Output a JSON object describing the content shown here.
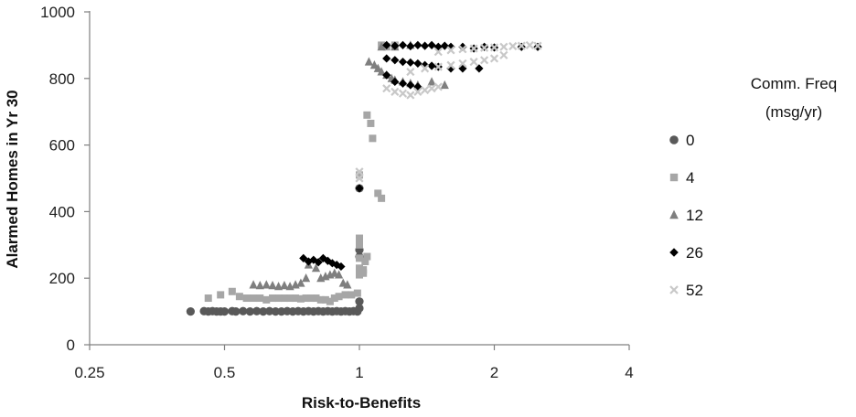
{
  "chart_data": {
    "type": "scatter",
    "title": "",
    "xlabel": "Risk-to-Benefits",
    "ylabel": "Alarmed Homes in Yr 30",
    "xscale": "log2",
    "xlim": [
      0.25,
      4
    ],
    "ylim": [
      0,
      1000
    ],
    "xticks": [
      "0.25",
      "0.5",
      "1",
      "2",
      "4"
    ],
    "yticks": [
      "0",
      "200",
      "400",
      "600",
      "800",
      "1000"
    ],
    "grid": false,
    "legend_title": "Comm. Freq (msg/yr)",
    "legend_title_lines": [
      "Comm. Freq",
      "(msg/yr)"
    ],
    "legend_position": "right",
    "series": [
      {
        "name": "0",
        "marker": "circle",
        "color": "#595959",
        "points": [
          [
            0.42,
            100
          ],
          [
            0.45,
            101
          ],
          [
            0.46,
            100
          ],
          [
            0.47,
            101
          ],
          [
            0.48,
            100
          ],
          [
            0.49,
            100
          ],
          [
            0.5,
            100
          ],
          [
            0.52,
            101
          ],
          [
            0.53,
            100
          ],
          [
            0.55,
            101
          ],
          [
            0.57,
            100
          ],
          [
            0.59,
            101
          ],
          [
            0.61,
            100
          ],
          [
            0.63,
            101
          ],
          [
            0.65,
            100
          ],
          [
            0.67,
            100
          ],
          [
            0.69,
            101
          ],
          [
            0.71,
            100
          ],
          [
            0.73,
            101
          ],
          [
            0.75,
            100
          ],
          [
            0.77,
            101
          ],
          [
            0.79,
            100
          ],
          [
            0.81,
            101
          ],
          [
            0.83,
            100
          ],
          [
            0.85,
            101
          ],
          [
            0.87,
            100
          ],
          [
            0.89,
            101
          ],
          [
            0.91,
            100
          ],
          [
            0.93,
            101
          ],
          [
            0.95,
            100
          ],
          [
            0.97,
            101
          ],
          [
            0.99,
            100
          ],
          [
            1.0,
            110
          ],
          [
            1.0,
            130
          ],
          [
            1.0,
            265
          ],
          [
            1.0,
            285
          ],
          [
            1.0,
            470
          ]
        ]
      },
      {
        "name": "4",
        "marker": "square",
        "color": "#a6a6a6",
        "points": [
          [
            0.46,
            140
          ],
          [
            0.49,
            150
          ],
          [
            0.52,
            160
          ],
          [
            0.54,
            145
          ],
          [
            0.56,
            140
          ],
          [
            0.58,
            140
          ],
          [
            0.6,
            140
          ],
          [
            0.62,
            135
          ],
          [
            0.64,
            140
          ],
          [
            0.66,
            140
          ],
          [
            0.68,
            140
          ],
          [
            0.7,
            140
          ],
          [
            0.72,
            140
          ],
          [
            0.74,
            138
          ],
          [
            0.76,
            140
          ],
          [
            0.78,
            140
          ],
          [
            0.8,
            140
          ],
          [
            0.82,
            135
          ],
          [
            0.84,
            135
          ],
          [
            0.86,
            130
          ],
          [
            0.88,
            140
          ],
          [
            0.9,
            145
          ],
          [
            0.93,
            150
          ],
          [
            0.96,
            150
          ],
          [
            0.99,
            155
          ],
          [
            1.0,
            210
          ],
          [
            1.0,
            230
          ],
          [
            1.0,
            260
          ],
          [
            1.0,
            300
          ],
          [
            1.0,
            320
          ],
          [
            1.0,
            510
          ],
          [
            1.02,
            215
          ],
          [
            1.02,
            225
          ],
          [
            1.03,
            250
          ],
          [
            1.04,
            265
          ],
          [
            1.04,
            690
          ],
          [
            1.06,
            665
          ],
          [
            1.07,
            620
          ],
          [
            1.1,
            455
          ],
          [
            1.12,
            440
          ],
          [
            1.12,
            900
          ],
          [
            1.15,
            895
          ],
          [
            1.2,
            900
          ]
        ]
      },
      {
        "name": "12",
        "marker": "triangle",
        "color": "#7f7f7f",
        "points": [
          [
            0.58,
            180
          ],
          [
            0.6,
            178
          ],
          [
            0.62,
            180
          ],
          [
            0.64,
            178
          ],
          [
            0.66,
            175
          ],
          [
            0.68,
            178
          ],
          [
            0.7,
            175
          ],
          [
            0.72,
            180
          ],
          [
            0.74,
            185
          ],
          [
            0.76,
            200
          ],
          [
            0.77,
            240
          ],
          [
            0.8,
            230
          ],
          [
            0.82,
            200
          ],
          [
            0.84,
            205
          ],
          [
            0.86,
            210
          ],
          [
            0.88,
            215
          ],
          [
            0.9,
            210
          ],
          [
            0.92,
            185
          ],
          [
            0.94,
            180
          ],
          [
            1.05,
            850
          ],
          [
            1.08,
            840
          ],
          [
            1.1,
            830
          ],
          [
            1.12,
            820
          ],
          [
            1.15,
            810
          ],
          [
            1.18,
            800
          ],
          [
            1.2,
            795
          ],
          [
            1.25,
            790
          ],
          [
            1.3,
            785
          ],
          [
            1.35,
            780
          ],
          [
            1.45,
            790
          ],
          [
            1.55,
            780
          ],
          [
            1.12,
            895
          ],
          [
            1.2,
            895
          ],
          [
            1.3,
            900
          ]
        ]
      },
      {
        "name": "26",
        "marker": "diamond",
        "color": "#000000",
        "points": [
          [
            0.75,
            260
          ],
          [
            0.77,
            250
          ],
          [
            0.79,
            255
          ],
          [
            0.81,
            248
          ],
          [
            0.83,
            260
          ],
          [
            0.85,
            252
          ],
          [
            0.87,
            245
          ],
          [
            0.89,
            240
          ],
          [
            0.91,
            235
          ],
          [
            1.0,
            470
          ],
          [
            1.15,
            860
          ],
          [
            1.2,
            855
          ],
          [
            1.25,
            850
          ],
          [
            1.3,
            848
          ],
          [
            1.35,
            845
          ],
          [
            1.4,
            840
          ],
          [
            1.45,
            838
          ],
          [
            1.5,
            835
          ],
          [
            1.6,
            830
          ],
          [
            1.7,
            830
          ],
          [
            1.85,
            830
          ],
          [
            1.15,
            810
          ],
          [
            1.2,
            790
          ],
          [
            1.25,
            785
          ],
          [
            1.3,
            780
          ],
          [
            1.35,
            775
          ],
          [
            1.15,
            900
          ],
          [
            1.2,
            898
          ],
          [
            1.25,
            900
          ],
          [
            1.3,
            897
          ],
          [
            1.35,
            900
          ],
          [
            1.4,
            898
          ],
          [
            1.45,
            900
          ],
          [
            1.5,
            895
          ],
          [
            1.55,
            898
          ],
          [
            1.6,
            895
          ],
          [
            1.7,
            895
          ],
          [
            1.8,
            890
          ],
          [
            1.9,
            895
          ],
          [
            2.0,
            893
          ],
          [
            2.3,
            895
          ],
          [
            2.5,
            895
          ]
        ]
      },
      {
        "name": "52",
        "marker": "x",
        "color": "#c8c8c8",
        "points": [
          [
            1.0,
            500
          ],
          [
            1.0,
            520
          ],
          [
            1.15,
            770
          ],
          [
            1.2,
            760
          ],
          [
            1.25,
            755
          ],
          [
            1.3,
            750
          ],
          [
            1.35,
            760
          ],
          [
            1.4,
            765
          ],
          [
            1.45,
            770
          ],
          [
            1.5,
            775
          ],
          [
            1.3,
            820
          ],
          [
            1.4,
            830
          ],
          [
            1.5,
            835
          ],
          [
            1.6,
            840
          ],
          [
            1.7,
            845
          ],
          [
            1.8,
            850
          ],
          [
            1.9,
            855
          ],
          [
            2.0,
            860
          ],
          [
            2.1,
            870
          ],
          [
            1.5,
            880
          ],
          [
            1.6,
            885
          ],
          [
            1.7,
            888
          ],
          [
            1.8,
            890
          ],
          [
            1.9,
            892
          ],
          [
            2.0,
            893
          ],
          [
            2.1,
            895
          ],
          [
            2.2,
            897
          ],
          [
            2.3,
            898
          ],
          [
            2.4,
            900
          ],
          [
            2.5,
            898
          ]
        ]
      }
    ]
  }
}
